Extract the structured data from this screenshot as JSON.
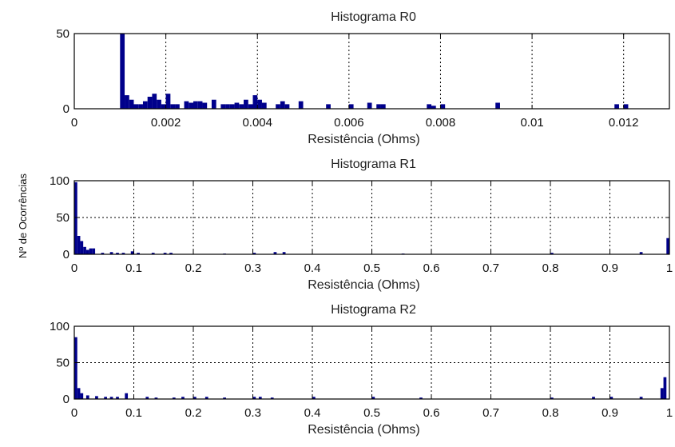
{
  "figure": {
    "ylabel": "Nº de Ocorrências",
    "bar_color": "#00008b",
    "background": "#ffffff"
  },
  "chart_data": [
    {
      "type": "bar",
      "title": "Histograma R0",
      "xlabel": "Resistência (Ohms)",
      "ylabel": "",
      "xlim": [
        0,
        0.013
      ],
      "ylim": [
        0,
        50
      ],
      "grid": true,
      "xticks": [
        0,
        0.002,
        0.004,
        0.006,
        0.008,
        0.01,
        0.012
      ],
      "xtick_labels": [
        "0",
        "0.002",
        "0.004",
        "0.006",
        "0.008",
        "0.01",
        "0.012"
      ],
      "yticks": [
        0,
        50
      ],
      "ytick_labels": [
        "0",
        "50"
      ],
      "bin_width": 0.0001,
      "bins": [
        [
          0.001,
          50
        ],
        [
          0.0011,
          9
        ],
        [
          0.0012,
          6
        ],
        [
          0.0013,
          3
        ],
        [
          0.0014,
          3
        ],
        [
          0.0015,
          5
        ],
        [
          0.0016,
          8
        ],
        [
          0.0017,
          10
        ],
        [
          0.0018,
          6
        ],
        [
          0.0019,
          3
        ],
        [
          0.002,
          10
        ],
        [
          0.0021,
          3
        ],
        [
          0.0022,
          3
        ],
        [
          0.0024,
          5
        ],
        [
          0.0025,
          4
        ],
        [
          0.0026,
          5
        ],
        [
          0.0027,
          5
        ],
        [
          0.0028,
          4
        ],
        [
          0.003,
          6
        ],
        [
          0.0032,
          3
        ],
        [
          0.0033,
          3
        ],
        [
          0.0034,
          3
        ],
        [
          0.0035,
          4
        ],
        [
          0.0036,
          3
        ],
        [
          0.0037,
          6
        ],
        [
          0.0038,
          3
        ],
        [
          0.0039,
          9
        ],
        [
          0.004,
          6
        ],
        [
          0.0041,
          4
        ],
        [
          0.0044,
          3
        ],
        [
          0.0045,
          5
        ],
        [
          0.0046,
          3
        ],
        [
          0.0049,
          5
        ],
        [
          0.0055,
          3
        ],
        [
          0.006,
          3
        ],
        [
          0.0064,
          4
        ],
        [
          0.0066,
          3
        ],
        [
          0.0067,
          3
        ],
        [
          0.0077,
          3
        ],
        [
          0.0078,
          2
        ],
        [
          0.008,
          3
        ],
        [
          0.0092,
          4
        ],
        [
          0.0118,
          3
        ],
        [
          0.012,
          3
        ]
      ]
    },
    {
      "type": "bar",
      "title": "Histograma R1",
      "xlabel": "Resistência (Ohms)",
      "ylabel": "",
      "xlim": [
        0,
        1
      ],
      "ylim": [
        0,
        100
      ],
      "grid": true,
      "xticks": [
        0,
        0.1,
        0.2,
        0.3,
        0.4,
        0.5,
        0.6,
        0.7,
        0.8,
        0.9,
        1
      ],
      "xtick_labels": [
        "0",
        "0.1",
        "0.2",
        "0.3",
        "0.4",
        "0.5",
        "0.6",
        "0.7",
        "0.8",
        "0.9",
        "1"
      ],
      "yticks": [
        0,
        50,
        100
      ],
      "ytick_labels": [
        "0",
        "50",
        "100"
      ],
      "bin_width": 0.005,
      "bins": [
        [
          0.0,
          98
        ],
        [
          0.005,
          25
        ],
        [
          0.01,
          18
        ],
        [
          0.015,
          10
        ],
        [
          0.02,
          6
        ],
        [
          0.025,
          8
        ],
        [
          0.03,
          8
        ],
        [
          0.045,
          2
        ],
        [
          0.06,
          3
        ],
        [
          0.07,
          2
        ],
        [
          0.08,
          2
        ],
        [
          0.095,
          4
        ],
        [
          0.105,
          2
        ],
        [
          0.13,
          2
        ],
        [
          0.15,
          2
        ],
        [
          0.16,
          2
        ],
        [
          0.25,
          1
        ],
        [
          0.3,
          2
        ],
        [
          0.335,
          3
        ],
        [
          0.35,
          3
        ],
        [
          0.55,
          1
        ],
        [
          0.8,
          2
        ],
        [
          0.95,
          3
        ],
        [
          0.995,
          22
        ]
      ]
    },
    {
      "type": "bar",
      "title": "Histograma R2",
      "xlabel": "Resistência (Ohms)",
      "ylabel": "",
      "xlim": [
        0,
        1
      ],
      "ylim": [
        0,
        100
      ],
      "grid": true,
      "xticks": [
        0,
        0.1,
        0.2,
        0.3,
        0.4,
        0.5,
        0.6,
        0.7,
        0.8,
        0.9,
        1
      ],
      "xtick_labels": [
        "0",
        "0.1",
        "0.2",
        "0.3",
        "0.4",
        "0.5",
        "0.6",
        "0.7",
        "0.8",
        "0.9",
        "1"
      ],
      "yticks": [
        0,
        50,
        100
      ],
      "ytick_labels": [
        "0",
        "50",
        "100"
      ],
      "bin_width": 0.005,
      "bins": [
        [
          0.0,
          85
        ],
        [
          0.005,
          15
        ],
        [
          0.01,
          8
        ],
        [
          0.02,
          5
        ],
        [
          0.035,
          4
        ],
        [
          0.05,
          3
        ],
        [
          0.06,
          3
        ],
        [
          0.07,
          3
        ],
        [
          0.085,
          8
        ],
        [
          0.12,
          3
        ],
        [
          0.135,
          2
        ],
        [
          0.165,
          2
        ],
        [
          0.18,
          3
        ],
        [
          0.2,
          3
        ],
        [
          0.22,
          3
        ],
        [
          0.25,
          2
        ],
        [
          0.3,
          3
        ],
        [
          0.31,
          3
        ],
        [
          0.33,
          2
        ],
        [
          0.4,
          3
        ],
        [
          0.5,
          3
        ],
        [
          0.58,
          2
        ],
        [
          0.8,
          2
        ],
        [
          0.87,
          3
        ],
        [
          0.9,
          3
        ],
        [
          0.95,
          3
        ],
        [
          0.985,
          15
        ],
        [
          0.99,
          30
        ]
      ]
    }
  ]
}
